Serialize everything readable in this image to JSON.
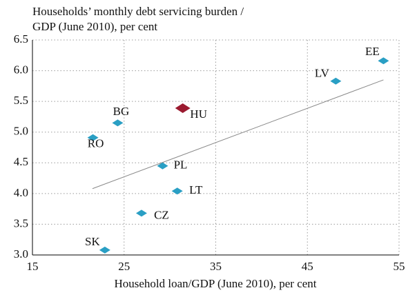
{
  "chart_data": {
    "type": "scatter",
    "title_lines": [
      "Households’ monthly debt servicing burden /",
      "GDP (June  2010), per cent"
    ],
    "x_label": "Household loan/GDP (June 2010), per cent",
    "point_labels": [
      "EE",
      "LV",
      "HU",
      "BG",
      "RO",
      "PL",
      "LT",
      "CZ",
      "SK"
    ],
    "x": [
      53.3,
      48.1,
      31.4,
      24.3,
      21.6,
      29.2,
      30.8,
      26.9,
      22.9
    ],
    "values": [
      6.16,
      5.83,
      5.39,
      5.15,
      4.91,
      4.45,
      4.04,
      3.68,
      3.08
    ],
    "colors": [
      "#2a9fc4",
      "#2a9fc4",
      "#9b1b30",
      "#2a9fc4",
      "#2a9fc4",
      "#2a9fc4",
      "#2a9fc4",
      "#2a9fc4",
      "#2a9fc4"
    ],
    "trendline": {
      "x": [
        21.55,
        53.3
      ],
      "values": [
        4.08,
        5.85
      ],
      "color": "#888888"
    },
    "xlim": [
      15,
      55
    ],
    "xticks": [
      15,
      25,
      35,
      45,
      55
    ],
    "ylim": [
      3,
      6.5
    ],
    "yticks": [
      {
        "value": 3,
        "label": "3.0"
      },
      3.5,
      {
        "value": 4,
        "label": "4.0"
      },
      4.5,
      {
        "value": 5,
        "label": "5.0"
      },
      5.5,
      {
        "value": 6,
        "label": "6.0"
      },
      6.5
    ],
    "grid": true
  }
}
